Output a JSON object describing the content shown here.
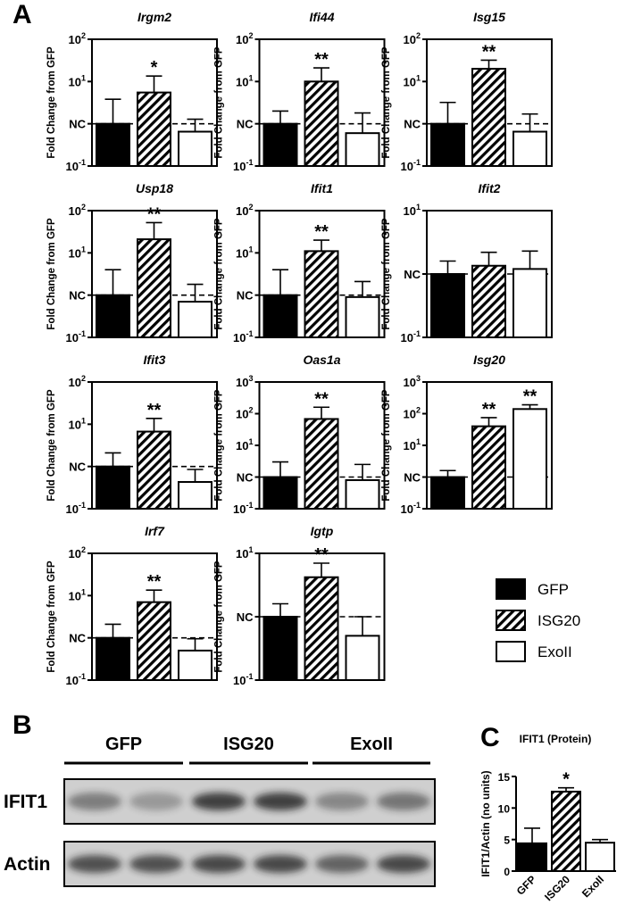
{
  "panel_labels": [
    "A",
    "B",
    "C"
  ],
  "legend": [
    {
      "name": "GFP",
      "color": "#000000"
    },
    {
      "name": "ISG20",
      "color": "#000000",
      "hatched": true
    },
    {
      "name": "ExoII",
      "color": "#ffffff"
    }
  ],
  "blot": {
    "lanes": [
      "GFP",
      "ISG20",
      "ExoII"
    ],
    "rows": [
      "IFIT1",
      "Actin"
    ]
  },
  "chart_data": [
    {
      "type": "bar",
      "title": "Irgm2",
      "y_label": "Fold Change from GFP",
      "log_scale": true,
      "box": true,
      "ylim": [
        0.1,
        100
      ],
      "yticks": [
        {
          "value": 0.1,
          "label": "10",
          "exponent": "-1"
        },
        {
          "value": 1,
          "label": "NC",
          "dashed": true
        },
        {
          "value": 10,
          "label": "10",
          "exponent": "1"
        },
        {
          "value": 100,
          "label": "10",
          "exponent": "2"
        }
      ],
      "values": [
        1,
        5.5,
        0.65
      ],
      "errors": [
        2.8,
        8,
        0.63
      ],
      "significance": [
        null,
        "*",
        null
      ]
    },
    {
      "type": "bar",
      "title": "Ifi44",
      "y_label": "Fold Change from GFP",
      "log_scale": true,
      "box": true,
      "ylim": [
        0.1,
        100
      ],
      "yticks": [
        {
          "value": 0.1,
          "label": "10",
          "exponent": "-1"
        },
        {
          "value": 1,
          "label": "NC",
          "dashed": true
        },
        {
          "value": 10,
          "label": "10",
          "exponent": "1"
        },
        {
          "value": 100,
          "label": "10",
          "exponent": "2"
        }
      ],
      "values": [
        1,
        10,
        0.6
      ],
      "errors": [
        1,
        11,
        1.2
      ],
      "significance": [
        null,
        "**",
        null
      ]
    },
    {
      "type": "bar",
      "title": "Isg15",
      "y_label": "Fold Change from GFP",
      "log_scale": true,
      "box": true,
      "ylim": [
        0.1,
        100
      ],
      "yticks": [
        {
          "value": 0.1,
          "label": "10",
          "exponent": "-1"
        },
        {
          "value": 1,
          "label": "NC",
          "dashed": true
        },
        {
          "value": 10,
          "label": "10",
          "exponent": "1"
        },
        {
          "value": 100,
          "label": "10",
          "exponent": "2"
        }
      ],
      "values": [
        1,
        20,
        0.65
      ],
      "errors": [
        2.2,
        12,
        1.05
      ],
      "significance": [
        null,
        "**",
        null
      ]
    },
    {
      "type": "bar",
      "title": "Usp18",
      "y_label": "Fold Change from GFP",
      "log_scale": true,
      "box": true,
      "ylim": [
        0.1,
        100
      ],
      "yticks": [
        {
          "value": 0.1,
          "label": "10",
          "exponent": "-1"
        },
        {
          "value": 1,
          "label": "NC",
          "dashed": true
        },
        {
          "value": 10,
          "label": "10",
          "exponent": "1"
        },
        {
          "value": 100,
          "label": "10",
          "exponent": "2"
        }
      ],
      "values": [
        1,
        21,
        0.7
      ],
      "errors": [
        3,
        31,
        1.1
      ],
      "significance": [
        null,
        "**",
        null
      ]
    },
    {
      "type": "bar",
      "title": "Ifit1",
      "y_label": "Fold Change from GFP",
      "log_scale": true,
      "box": true,
      "ylim": [
        0.1,
        100
      ],
      "yticks": [
        {
          "value": 0.1,
          "label": "10",
          "exponent": "-1"
        },
        {
          "value": 1,
          "label": "NC",
          "dashed": true
        },
        {
          "value": 10,
          "label": "10",
          "exponent": "1"
        },
        {
          "value": 100,
          "label": "10",
          "exponent": "2"
        }
      ],
      "values": [
        1,
        11,
        0.9
      ],
      "errors": [
        3,
        9,
        1.2
      ],
      "significance": [
        null,
        "**",
        null
      ]
    },
    {
      "type": "bar",
      "title": "Ifit2",
      "y_label": "Fold Change from GFP",
      "log_scale": true,
      "box": true,
      "ylim": [
        0.1,
        10
      ],
      "yticks": [
        {
          "value": 0.1,
          "label": "10",
          "exponent": "-1"
        },
        {
          "value": 1,
          "label": "NC",
          "dashed": true
        },
        {
          "value": 10,
          "label": "10",
          "exponent": "1"
        }
      ],
      "values": [
        1,
        1.35,
        1.2
      ],
      "errors": [
        0.6,
        0.85,
        1.1
      ],
      "significance": [
        null,
        null,
        null
      ]
    },
    {
      "type": "bar",
      "title": "Ifit3",
      "y_label": "Fold Change from GFP",
      "log_scale": true,
      "box": true,
      "ylim": [
        0.1,
        100
      ],
      "yticks": [
        {
          "value": 0.1,
          "label": "10",
          "exponent": "-1"
        },
        {
          "value": 1,
          "label": "NC",
          "dashed": true
        },
        {
          "value": 10,
          "label": "10",
          "exponent": "1"
        },
        {
          "value": 100,
          "label": "10",
          "exponent": "2"
        }
      ],
      "values": [
        1,
        6.7,
        0.43
      ],
      "errors": [
        1.1,
        7,
        0.42
      ],
      "significance": [
        null,
        "**",
        null
      ]
    },
    {
      "type": "bar",
      "title": "Oas1a",
      "y_label": "Fold Change from GFP",
      "log_scale": true,
      "box": true,
      "ylim": [
        0.1,
        1000
      ],
      "yticks": [
        {
          "value": 0.1,
          "label": "10",
          "exponent": "-1"
        },
        {
          "value": 1,
          "label": "NC",
          "dashed": true
        },
        {
          "value": 10,
          "label": "10",
          "exponent": "1"
        },
        {
          "value": 100,
          "label": "10",
          "exponent": "2"
        },
        {
          "value": 1000,
          "label": "10",
          "exponent": "3"
        }
      ],
      "values": [
        1,
        68,
        0.8
      ],
      "errors": [
        2,
        92,
        1.7
      ],
      "significance": [
        null,
        "**",
        null
      ]
    },
    {
      "type": "bar",
      "title": "Isg20",
      "y_label": "Fold Change from GFP",
      "log_scale": true,
      "box": true,
      "ylim": [
        0.1,
        1000
      ],
      "yticks": [
        {
          "value": 0.1,
          "label": "10",
          "exponent": "-1"
        },
        {
          "value": 1,
          "label": "NC",
          "dashed": true
        },
        {
          "value": 10,
          "label": "10",
          "exponent": "1"
        },
        {
          "value": 100,
          "label": "10",
          "exponent": "2"
        },
        {
          "value": 1000,
          "label": "10",
          "exponent": "3"
        }
      ],
      "values": [
        1,
        40,
        140
      ],
      "errors": [
        0.6,
        35,
        50
      ],
      "significance": [
        null,
        "**",
        "**"
      ]
    },
    {
      "type": "bar",
      "title": "Irf7",
      "y_label": "Fold Change from GFP",
      "log_scale": true,
      "box": true,
      "ylim": [
        0.1,
        100
      ],
      "yticks": [
        {
          "value": 0.1,
          "label": "10",
          "exponent": "-1"
        },
        {
          "value": 1,
          "label": "NC",
          "dashed": true
        },
        {
          "value": 10,
          "label": "10",
          "exponent": "1"
        },
        {
          "value": 100,
          "label": "10",
          "exponent": "2"
        }
      ],
      "values": [
        1,
        7,
        0.5
      ],
      "errors": [
        1.1,
        6.5,
        0.45
      ],
      "significance": [
        null,
        "**",
        null
      ]
    },
    {
      "type": "bar",
      "title": "Igtp",
      "y_label": "Fold Change from GFP",
      "log_scale": true,
      "box": true,
      "ylim": [
        0.1,
        10
      ],
      "yticks": [
        {
          "value": 0.1,
          "label": "10",
          "exponent": "-1"
        },
        {
          "value": 1,
          "label": "NC",
          "dashed": true
        },
        {
          "value": 10,
          "label": "10",
          "exponent": "1"
        }
      ],
      "values": [
        1,
        4.2,
        0.5
      ],
      "errors": [
        0.6,
        2.8,
        0.5
      ],
      "significance": [
        null,
        "**",
        null
      ]
    },
    {
      "type": "bar",
      "title": "IFIT1 (Protein)",
      "y_label": "IFIT1/Actin (no units)",
      "log_scale": false,
      "box": false,
      "ylim": [
        0,
        15
      ],
      "yticks": [
        0,
        5,
        10,
        15
      ],
      "categories": [
        "GFP",
        "ISG20",
        "ExoII"
      ],
      "values": [
        4.4,
        12.6,
        4.5
      ],
      "errors": [
        2.4,
        0.6,
        0.5
      ],
      "significance": [
        null,
        "*",
        null
      ]
    }
  ]
}
